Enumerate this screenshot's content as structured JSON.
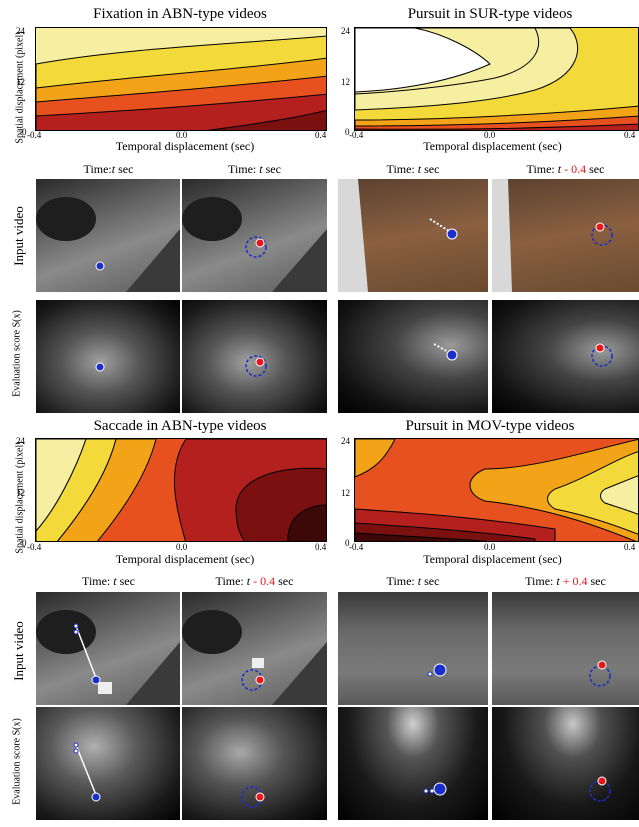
{
  "panels": [
    {
      "title": "Fixation in ABN-type videos",
      "xlabel": "Temporal displacement (sec)",
      "ylabel": "Spatial displacement (pixel)",
      "xticks": [
        "-0.4",
        "0.0",
        "0.4"
      ],
      "yticks": [
        "24",
        "12",
        "0"
      ],
      "time_labels": [
        {
          "prefix": "Time:",
          "var": "t",
          "offset": "",
          "unit": "sec"
        },
        {
          "prefix": "Time:",
          "var": "t",
          "offset": "",
          "unit": "sec"
        }
      ]
    },
    {
      "title": "Pursuit in SUR-type videos",
      "xlabel": "Temporal displacement (sec)",
      "ylabel": "",
      "xticks": [
        "-0.4",
        "0.0",
        "0.4"
      ],
      "yticks": [
        "24",
        "12",
        "0"
      ],
      "time_labels": [
        {
          "prefix": "Time:",
          "var": "t",
          "offset": "",
          "unit": "sec"
        },
        {
          "prefix": "Time:",
          "var": "t",
          "offset": "- 0.4",
          "unit": "sec"
        }
      ]
    },
    {
      "title": "Saccade in ABN-type videos",
      "xlabel": "Temporal displacement (sec)",
      "ylabel": "Spatial displacement (pixel)",
      "xticks": [
        "-0.4",
        "0.0",
        "0.4"
      ],
      "yticks": [
        "24",
        "12",
        "0"
      ],
      "time_labels": [
        {
          "prefix": "Time:",
          "var": "t",
          "offset": "",
          "unit": "sec"
        },
        {
          "prefix": "Time:",
          "var": "t",
          "offset": "- 0.4",
          "unit": "sec"
        }
      ]
    },
    {
      "title": "Pursuit in MOV-type videos",
      "xlabel": "Temporal displacement (sec)",
      "ylabel": "",
      "xticks": [
        "-0.4",
        "0.0",
        "0.4"
      ],
      "yticks": [
        "24",
        "12",
        "0"
      ],
      "time_labels": [
        {
          "prefix": "Time:",
          "var": "t",
          "offset": "",
          "unit": "sec"
        },
        {
          "prefix": "Time:",
          "var": "t",
          "offset": "+ 0.4",
          "unit": "sec"
        }
      ]
    }
  ],
  "row_labels": {
    "input": "Input video",
    "score": "Evaluation score S(x)"
  },
  "colors": {
    "gaze_current": "#e8161b",
    "gaze_other": "#1a2fc9",
    "contour_levels": [
      "#ffffff",
      "#f6eea0",
      "#f3d93a",
      "#f2a318",
      "#e7511f",
      "#b4201d",
      "#7a1010",
      "#3d0808"
    ]
  }
}
